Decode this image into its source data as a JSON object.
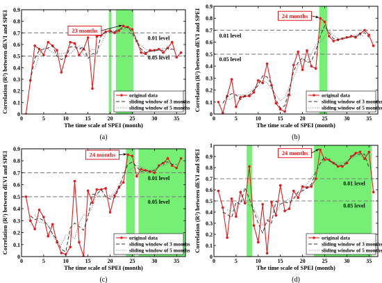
{
  "chart_data": [
    {
      "panel": "(a)",
      "type": "line",
      "xlabel": "The time scale of SPEI (month)",
      "ylabel": "Correlation (R²) between dEVI and SPEI",
      "xlim": [
        0,
        37
      ],
      "ylim": [
        0,
        0.9
      ],
      "xticks": [
        0,
        5,
        10,
        15,
        20,
        25,
        30,
        35
      ],
      "yticks": [
        0,
        0.1,
        0.2,
        0.3,
        0.4,
        0.5,
        0.6,
        0.7,
        0.8,
        0.9
      ],
      "highlight_ranges": [
        [
          19.7,
          20.3
        ],
        [
          21.3,
          25.3
        ]
      ],
      "level_lines": [
        {
          "y": 0.7,
          "label": "0.01 level",
          "label_x": 28.5,
          "label_y": 0.64
        },
        {
          "y": 0.5,
          "label": "0.05 level",
          "label_x": 28.5,
          "label_y": 0.47
        }
      ],
      "annotation": {
        "text": "23 months",
        "x": 23,
        "y": 0.76,
        "box_x": 10.5,
        "box_y": 0.72
      },
      "series": [
        {
          "name": "original data",
          "x": [
            1,
            2,
            3,
            4,
            5,
            6,
            7,
            8,
            9,
            10,
            11,
            12,
            13,
            14,
            15,
            16,
            17,
            18,
            19,
            20,
            21,
            22,
            23,
            24,
            25,
            26,
            27,
            28,
            29,
            30,
            31,
            32,
            33,
            34,
            35,
            36
          ],
          "values": [
            0.0,
            0.29,
            0.59,
            0.56,
            0.51,
            0.62,
            0.59,
            0.55,
            0.36,
            0.5,
            0.62,
            0.61,
            0.51,
            0.56,
            0.66,
            0.22,
            0.67,
            0.68,
            0.71,
            0.72,
            0.7,
            0.72,
            0.76,
            0.75,
            0.73,
            0.63,
            0.53,
            0.52,
            0.55,
            0.55,
            0.56,
            0.53,
            0.57,
            0.62,
            0.49,
            0.53
          ]
        },
        {
          "name": "sliding window of 3 months",
          "x": [
            2,
            3,
            4,
            5,
            6,
            7,
            8,
            9,
            10,
            11,
            12,
            13,
            14,
            15,
            16,
            17,
            18,
            19,
            20,
            21,
            22,
            23,
            24,
            25,
            26,
            27,
            28,
            29,
            30,
            31,
            32,
            33,
            34,
            35
          ],
          "values": [
            0.29,
            0.48,
            0.55,
            0.56,
            0.57,
            0.59,
            0.5,
            0.47,
            0.49,
            0.58,
            0.58,
            0.56,
            0.58,
            0.48,
            0.52,
            0.52,
            0.69,
            0.7,
            0.71,
            0.71,
            0.73,
            0.74,
            0.75,
            0.7,
            0.63,
            0.56,
            0.53,
            0.54,
            0.55,
            0.55,
            0.55,
            0.57,
            0.56,
            0.55
          ]
        },
        {
          "name": "sliding window of 5 months",
          "x": [
            3,
            4,
            5,
            6,
            7,
            8,
            9,
            10,
            11,
            12,
            13,
            14,
            15,
            16,
            17,
            18,
            19,
            20,
            21,
            22,
            23,
            24,
            25,
            26,
            27,
            28,
            29,
            30,
            31,
            32,
            33,
            34
          ],
          "values": [
            0.39,
            0.51,
            0.57,
            0.56,
            0.53,
            0.52,
            0.52,
            0.53,
            0.52,
            0.56,
            0.59,
            0.51,
            0.52,
            0.56,
            0.55,
            0.6,
            0.7,
            0.72,
            0.72,
            0.73,
            0.73,
            0.72,
            0.68,
            0.63,
            0.59,
            0.56,
            0.54,
            0.54,
            0.55,
            0.57,
            0.56,
            0.55
          ]
        }
      ]
    },
    {
      "panel": "(b)",
      "type": "line",
      "xlabel": "The time scale of SPEI (month)",
      "ylabel": "Correlation (R²) between dEVI and SPEI",
      "xlim": [
        0,
        37
      ],
      "ylim": [
        0,
        0.9
      ],
      "xticks": [
        0,
        5,
        10,
        15,
        20,
        25,
        30,
        35
      ],
      "yticks": [
        0,
        0.1,
        0.2,
        0.3,
        0.4,
        0.5,
        0.6,
        0.7,
        0.8,
        0.9
      ],
      "highlight_ranges": [
        [
          23.8,
          25.6
        ]
      ],
      "level_lines": [
        {
          "y": 0.7,
          "label": "0.01 level",
          "label_x": 1.2,
          "label_y": 0.64
        },
        {
          "y": 0.5,
          "label": "0.05 level",
          "label_x": 1.2,
          "label_y": 0.44
        }
      ],
      "annotation": {
        "text": "24 months",
        "x": 24,
        "y": 0.8,
        "box_x": 14.5,
        "box_y": 0.82
      },
      "series": [
        {
          "name": "original data",
          "x": [
            1,
            2,
            3,
            4,
            5,
            6,
            7,
            8,
            9,
            10,
            11,
            12,
            13,
            14,
            15,
            16,
            17,
            18,
            19,
            20,
            21,
            22,
            23,
            24,
            25,
            26,
            27,
            28,
            29,
            30,
            31,
            32,
            33,
            34,
            35,
            36
          ],
          "values": [
            0.1,
            0.01,
            0.15,
            0.29,
            0.06,
            0.14,
            0.15,
            0.15,
            0.18,
            0.28,
            0.26,
            0.42,
            0.24,
            0.09,
            0.04,
            0.02,
            0.16,
            0.41,
            0.52,
            0.37,
            0.53,
            0.4,
            0.38,
            0.8,
            0.77,
            0.65,
            0.61,
            0.62,
            0.63,
            0.64,
            0.65,
            0.64,
            0.67,
            0.7,
            0.66,
            0.57
          ]
        },
        {
          "name": "sliding window of 3 months",
          "x": [
            2,
            3,
            4,
            5,
            6,
            7,
            8,
            9,
            10,
            11,
            12,
            13,
            14,
            15,
            16,
            17,
            18,
            19,
            20,
            21,
            22,
            23,
            24,
            25,
            26,
            27,
            28,
            29,
            30,
            31,
            32,
            33,
            34,
            35
          ],
          "values": [
            0.09,
            0.15,
            0.17,
            0.16,
            0.12,
            0.15,
            0.16,
            0.2,
            0.24,
            0.32,
            0.31,
            0.25,
            0.12,
            0.05,
            0.07,
            0.2,
            0.36,
            0.43,
            0.47,
            0.43,
            0.44,
            0.53,
            0.65,
            0.74,
            0.68,
            0.63,
            0.62,
            0.63,
            0.64,
            0.64,
            0.65,
            0.67,
            0.68,
            0.64
          ]
        },
        {
          "name": "sliding window of 5 months",
          "x": [
            3,
            4,
            5,
            6,
            7,
            8,
            9,
            10,
            11,
            12,
            13,
            14,
            15,
            16,
            17,
            18,
            19,
            20,
            21,
            22,
            23,
            24,
            25,
            26,
            27,
            28,
            29,
            30,
            31,
            32,
            33,
            34
          ],
          "values": [
            0.12,
            0.13,
            0.16,
            0.16,
            0.16,
            0.18,
            0.21,
            0.26,
            0.28,
            0.26,
            0.21,
            0.16,
            0.11,
            0.14,
            0.23,
            0.3,
            0.4,
            0.45,
            0.44,
            0.5,
            0.58,
            0.6,
            0.65,
            0.69,
            0.66,
            0.63,
            0.63,
            0.63,
            0.65,
            0.66,
            0.66,
            0.65
          ]
        }
      ]
    },
    {
      "panel": "(c)",
      "type": "line",
      "xlabel": "The time scale of SPEI (month)",
      "ylabel": "Correlation (R²) between dEVI and SPEI",
      "xlim": [
        0,
        37
      ],
      "ylim": [
        0,
        0.9
      ],
      "xticks": [
        0,
        5,
        10,
        15,
        20,
        25,
        30,
        35
      ],
      "yticks": [
        0,
        0.1,
        0.2,
        0.3,
        0.4,
        0.5,
        0.6,
        0.7,
        0.8,
        0.9
      ],
      "highlight_ranges": [
        [
          23.6,
          25.6
        ],
        [
          26.4,
          37
        ]
      ],
      "level_lines": [
        {
          "y": 0.7,
          "label": "0.01 level",
          "label_x": 28.5,
          "label_y": 0.64
        },
        {
          "y": 0.5,
          "label": "0.05 level",
          "label_x": 28.5,
          "label_y": 0.44
        }
      ],
      "annotation": {
        "text": "24 months",
        "x": 24,
        "y": 0.85,
        "box_x": 14.5,
        "box_y": 0.85
      },
      "series": [
        {
          "name": "original data",
          "x": [
            1,
            2,
            3,
            4,
            5,
            6,
            7,
            8,
            9,
            10,
            11,
            12,
            13,
            14,
            15,
            16,
            17,
            18,
            19,
            20,
            21,
            22,
            23,
            24,
            25,
            26,
            27,
            28,
            29,
            30,
            31,
            32,
            33,
            34,
            35,
            36
          ],
          "values": [
            0.5,
            0.3,
            0.23,
            0.39,
            0.33,
            0.17,
            0.27,
            0.12,
            0.03,
            0.02,
            0.08,
            0.63,
            0.12,
            0.0,
            0.55,
            0.45,
            0.56,
            0.56,
            0.57,
            0.37,
            0.51,
            0.58,
            0.62,
            0.85,
            0.84,
            0.67,
            0.73,
            0.72,
            0.71,
            0.7,
            0.76,
            0.78,
            0.82,
            0.76,
            0.74,
            0.82
          ]
        },
        {
          "name": "sliding window of 3 months",
          "x": [
            2,
            3,
            4,
            5,
            6,
            7,
            8,
            9,
            10,
            11,
            12,
            13,
            14,
            15,
            16,
            17,
            18,
            19,
            20,
            21,
            22,
            23,
            24,
            25,
            26,
            27,
            28,
            29,
            30,
            31,
            32,
            33,
            34,
            35
          ],
          "values": [
            0.34,
            0.31,
            0.32,
            0.3,
            0.26,
            0.19,
            0.14,
            0.06,
            0.04,
            0.24,
            0.28,
            0.25,
            0.22,
            0.33,
            0.52,
            0.52,
            0.56,
            0.5,
            0.48,
            0.49,
            0.57,
            0.68,
            0.77,
            0.79,
            0.75,
            0.71,
            0.72,
            0.71,
            0.72,
            0.75,
            0.79,
            0.79,
            0.77,
            0.77
          ]
        },
        {
          "name": "sliding window of 5 months",
          "x": [
            3,
            4,
            5,
            6,
            7,
            8,
            9,
            10,
            11,
            12,
            13,
            14,
            15,
            16,
            17,
            18,
            19,
            20,
            21,
            22,
            23,
            24,
            25,
            26,
            27,
            28,
            29,
            30,
            31,
            32,
            33,
            34
          ],
          "values": [
            0.35,
            0.29,
            0.28,
            0.26,
            0.18,
            0.12,
            0.1,
            0.18,
            0.18,
            0.15,
            0.28,
            0.35,
            0.34,
            0.42,
            0.52,
            0.5,
            0.51,
            0.51,
            0.53,
            0.59,
            0.68,
            0.71,
            0.74,
            0.76,
            0.75,
            0.73,
            0.72,
            0.73,
            0.75,
            0.76,
            0.78,
            0.78
          ]
        }
      ]
    },
    {
      "panel": "(d)",
      "type": "line",
      "xlabel": "The time scale of SPEI (month)",
      "ylabel": "Correlation (R²) between dEVI and SPEI",
      "xlim": [
        0,
        37
      ],
      "ylim": [
        0,
        1.0
      ],
      "xticks": [
        0,
        5,
        10,
        15,
        20,
        25,
        30,
        35
      ],
      "yticks": [
        0,
        0.1,
        0.2,
        0.3,
        0.4,
        0.5,
        0.6,
        0.7,
        0.8,
        0.9,
        1.0
      ],
      "highlight_ranges": [
        [
          7.4,
          8.6
        ],
        [
          22.6,
          35.6
        ]
      ],
      "level_lines": [
        {
          "y": 0.7,
          "label": "0.01 level",
          "label_x": 29.2,
          "label_y": 0.64
        },
        {
          "y": 0.5,
          "label": "0.05 level",
          "label_x": 29.2,
          "label_y": 0.44
        }
      ],
      "annotation": {
        "text": "24 months",
        "x": 24,
        "y": 0.96,
        "box_x": 14.5,
        "box_y": 0.93
      },
      "series": [
        {
          "name": "original data",
          "x": [
            1,
            2,
            3,
            4,
            5,
            6,
            7,
            8,
            9,
            10,
            11,
            12,
            13,
            14,
            15,
            16,
            17,
            18,
            19,
            20,
            21,
            22,
            23,
            24,
            25,
            26,
            27,
            28,
            29,
            30,
            31,
            32,
            33,
            34,
            35,
            36
          ],
          "values": [
            0.59,
            0.44,
            0.17,
            0.52,
            0.36,
            0.58,
            0.48,
            0.81,
            0.28,
            0.13,
            0.47,
            0.03,
            0.49,
            0.37,
            0.64,
            0.41,
            0.43,
            0.59,
            0.53,
            0.63,
            0.62,
            0.63,
            0.7,
            0.96,
            0.87,
            0.87,
            0.84,
            0.81,
            0.81,
            0.84,
            0.9,
            0.93,
            0.94,
            0.88,
            0.94,
            0.58
          ]
        },
        {
          "name": "sliding window of 3 months",
          "x": [
            2,
            3,
            4,
            5,
            6,
            7,
            8,
            9,
            10,
            11,
            12,
            13,
            14,
            15,
            16,
            17,
            18,
            19,
            20,
            21,
            22,
            23,
            24,
            25,
            26,
            27,
            28,
            29,
            30,
            31,
            32,
            33,
            34,
            35
          ],
          "values": [
            0.4,
            0.38,
            0.35,
            0.49,
            0.47,
            0.62,
            0.52,
            0.41,
            0.3,
            0.21,
            0.33,
            0.3,
            0.5,
            0.47,
            0.49,
            0.48,
            0.52,
            0.58,
            0.59,
            0.62,
            0.65,
            0.76,
            0.84,
            0.9,
            0.86,
            0.84,
            0.82,
            0.82,
            0.85,
            0.89,
            0.92,
            0.92,
            0.92,
            0.8
          ]
        },
        {
          "name": "sliding window of 5 months",
          "x": [
            3,
            4,
            5,
            6,
            7,
            8,
            9,
            10,
            11,
            12,
            13,
            14,
            15,
            16,
            17,
            18,
            19,
            20,
            21,
            22,
            23,
            24,
            25,
            26,
            27,
            28,
            29,
            30,
            31,
            32,
            33,
            34
          ],
          "values": [
            0.42,
            0.41,
            0.42,
            0.55,
            0.5,
            0.46,
            0.44,
            0.35,
            0.28,
            0.3,
            0.4,
            0.39,
            0.47,
            0.49,
            0.52,
            0.52,
            0.56,
            0.6,
            0.65,
            0.71,
            0.76,
            0.83,
            0.87,
            0.87,
            0.85,
            0.84,
            0.84,
            0.86,
            0.88,
            0.9,
            0.91,
            0.88
          ]
        }
      ]
    }
  ],
  "style": {
    "original_color": "#e41a1c",
    "highlight_color": "#66ee66",
    "level_line_color": "#808080",
    "window3_color": "#333333",
    "window5_color": "#777777",
    "annotation_box_color": "#e41a1c"
  }
}
